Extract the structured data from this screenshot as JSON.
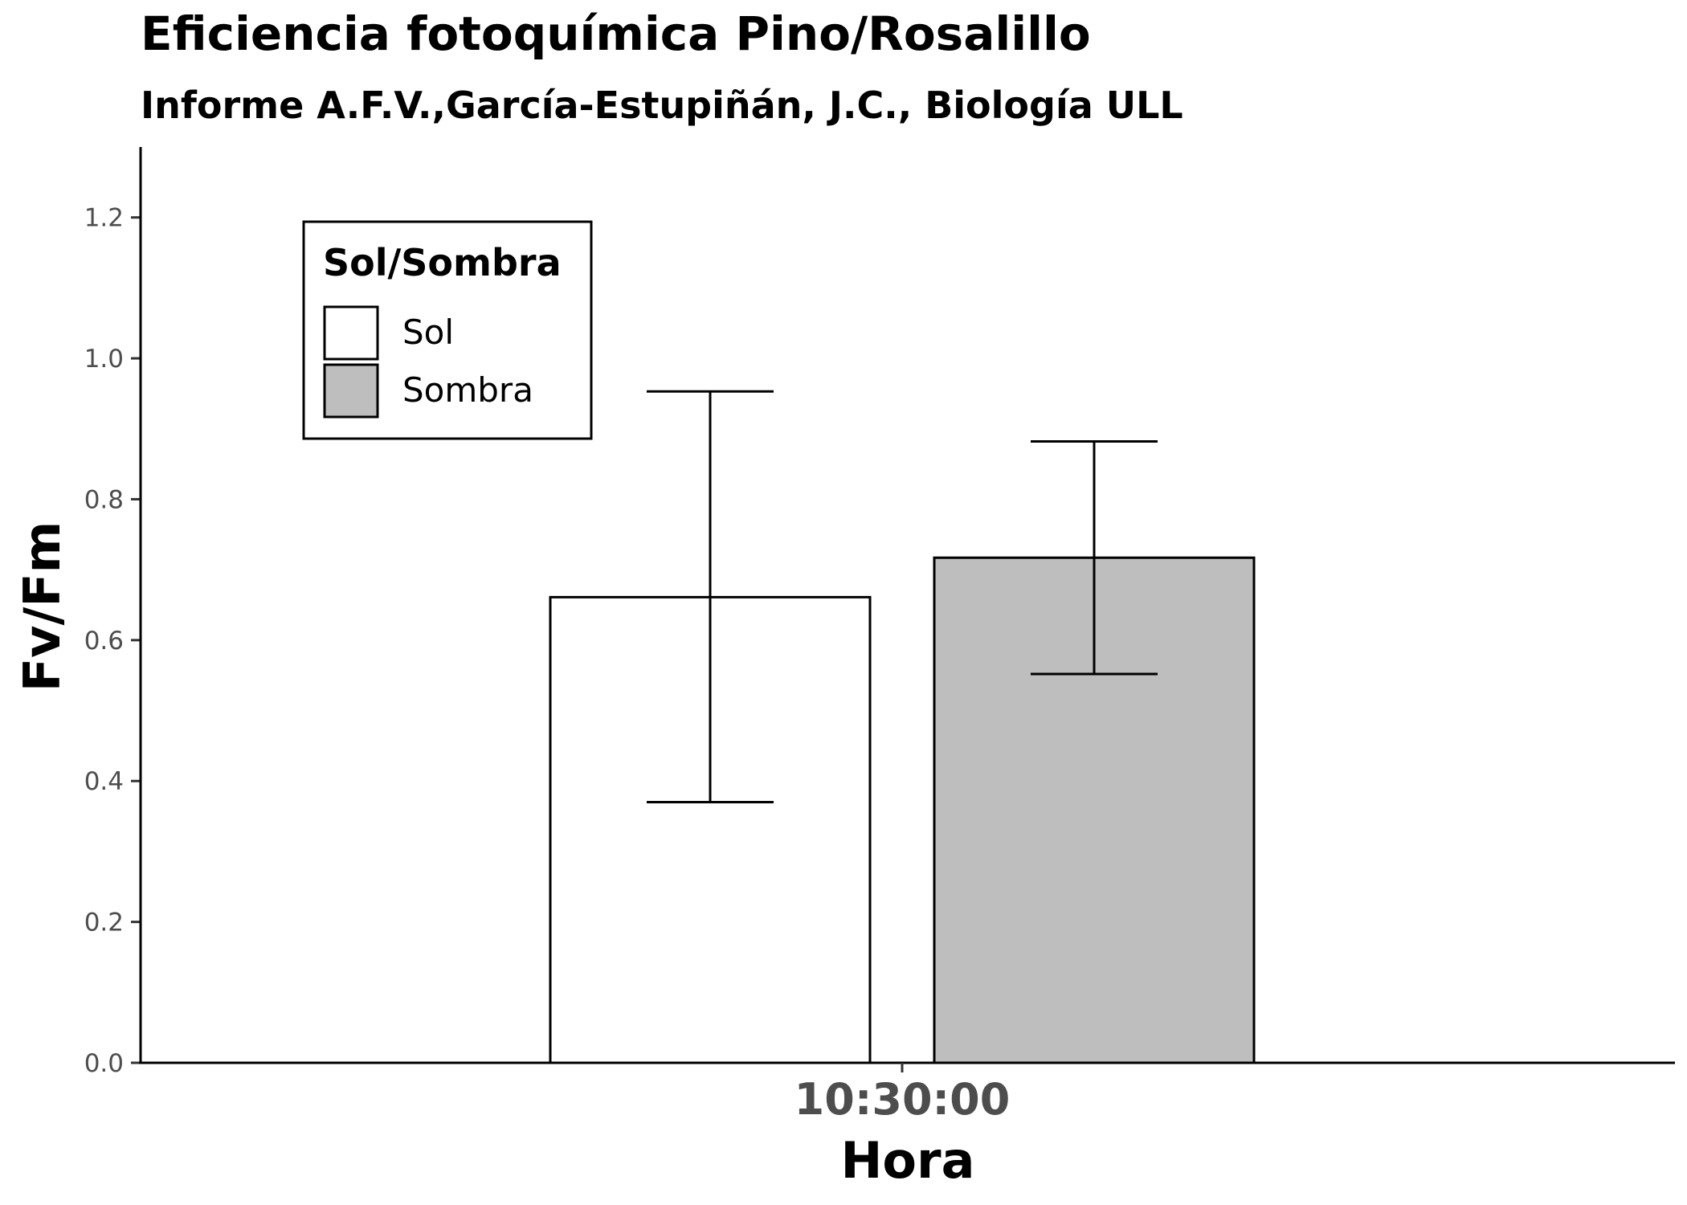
{
  "chart_data": {
    "type": "bar",
    "title": "Eficiencia fotoquímica Pino/Rosalillo",
    "subtitle": "Informe A.F.V.,García-Estupiñán, J.C., Biología ULL",
    "xlabel": "Hora",
    "ylabel": "Fv/Fm",
    "categories": [
      "10:30:00"
    ],
    "ylim": [
      0,
      1.3
    ],
    "yticks": [
      0.0,
      0.2,
      0.4,
      0.6,
      0.8,
      1.0,
      1.2
    ],
    "ytick_labels": [
      "0.0",
      "0.2",
      "0.4",
      "0.6",
      "0.8",
      "1.0",
      "1.2"
    ],
    "grid": false,
    "legend": {
      "title": "Sol/Sombra",
      "placement": "top-left"
    },
    "series": [
      {
        "name": "Sol",
        "color": "#ffffff",
        "values": [
          0.661
        ],
        "error_low": [
          0.37
        ],
        "error_high": [
          0.953
        ]
      },
      {
        "name": "Sombra",
        "color": "#bebebe",
        "values": [
          0.717
        ],
        "error_low": [
          0.552
        ],
        "error_high": [
          0.882
        ]
      }
    ]
  }
}
